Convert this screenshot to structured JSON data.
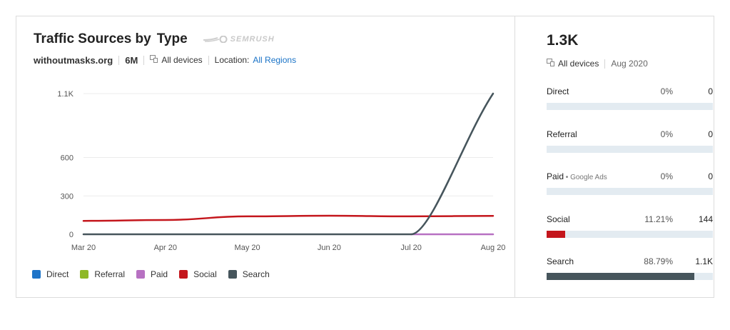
{
  "widget": {
    "title_part1": "Traffic Sources by",
    "title_part2": "Type",
    "brand": "SEMRUSH",
    "domain": "withoutmasks.org",
    "period": "6M",
    "devices": "All devices",
    "location_label": "Location:",
    "location_value": "All Regions"
  },
  "chart_data": {
    "type": "line",
    "x": [
      "Mar 20",
      "Apr 20",
      "May 20",
      "Jun 20",
      "Jul 20",
      "Aug 20"
    ],
    "yticks": [
      0,
      300,
      600,
      1100
    ],
    "ytick_labels": [
      "0",
      "300",
      "600",
      "1.1K"
    ],
    "ylim": [
      0,
      1100
    ],
    "grid": true,
    "legend_position": "bottom-left",
    "series": [
      {
        "name": "Direct",
        "color": "#1e74c8",
        "values": [
          0,
          0,
          0,
          0,
          0,
          0
        ]
      },
      {
        "name": "Referral",
        "color": "#8fb827",
        "values": [
          0,
          0,
          0,
          0,
          0,
          0
        ]
      },
      {
        "name": "Paid",
        "color": "#b771c2",
        "values": [
          0,
          0,
          0,
          0,
          0,
          0
        ]
      },
      {
        "name": "Social",
        "color": "#c4161c",
        "values": [
          105,
          112,
          140,
          145,
          140,
          144
        ]
      },
      {
        "name": "Search",
        "color": "#46555c",
        "values": [
          0,
          0,
          0,
          0,
          0,
          1100
        ]
      }
    ]
  },
  "summary": {
    "total": "1.3K",
    "devices": "All devices",
    "date": "Aug 2020",
    "sources": [
      {
        "name": "Direct",
        "sub": "",
        "pct": "0%",
        "value": "0",
        "share": 0,
        "color": "#1e74c8"
      },
      {
        "name": "Referral",
        "sub": "",
        "pct": "0%",
        "value": "0",
        "share": 0,
        "color": "#8fb827"
      },
      {
        "name": "Paid",
        "sub": "Google Ads",
        "pct": "0%",
        "value": "0",
        "share": 0,
        "color": "#b771c2"
      },
      {
        "name": "Social",
        "sub": "",
        "pct": "11.21%",
        "value": "144",
        "share": 0.1121,
        "color": "#c4161c"
      },
      {
        "name": "Search",
        "sub": "",
        "pct": "88.79%",
        "value": "1.1K",
        "share": 0.8879,
        "color": "#46555c"
      }
    ]
  }
}
